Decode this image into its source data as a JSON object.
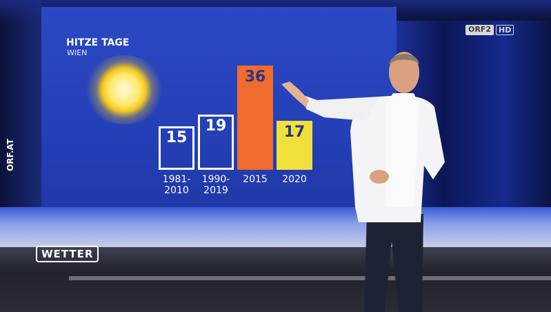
{
  "chart_data": {
    "type": "bar",
    "title": "HITZE TAGE",
    "subtitle": "WIEN",
    "categories": [
      "1981-2010",
      "1990-2019",
      "2015",
      "2020"
    ],
    "values": [
      15,
      19,
      36,
      17
    ],
    "bar_styles": [
      "outline",
      "outline",
      "fill",
      "fill"
    ],
    "colors": [
      "#ffffff",
      "#ffffff",
      "#ef6b2e",
      "#efe03c"
    ]
  },
  "overlay": {
    "side_label": "ORF.AT",
    "show_logo": "WETTER",
    "channel": "ORF2",
    "quality": "HD"
  }
}
